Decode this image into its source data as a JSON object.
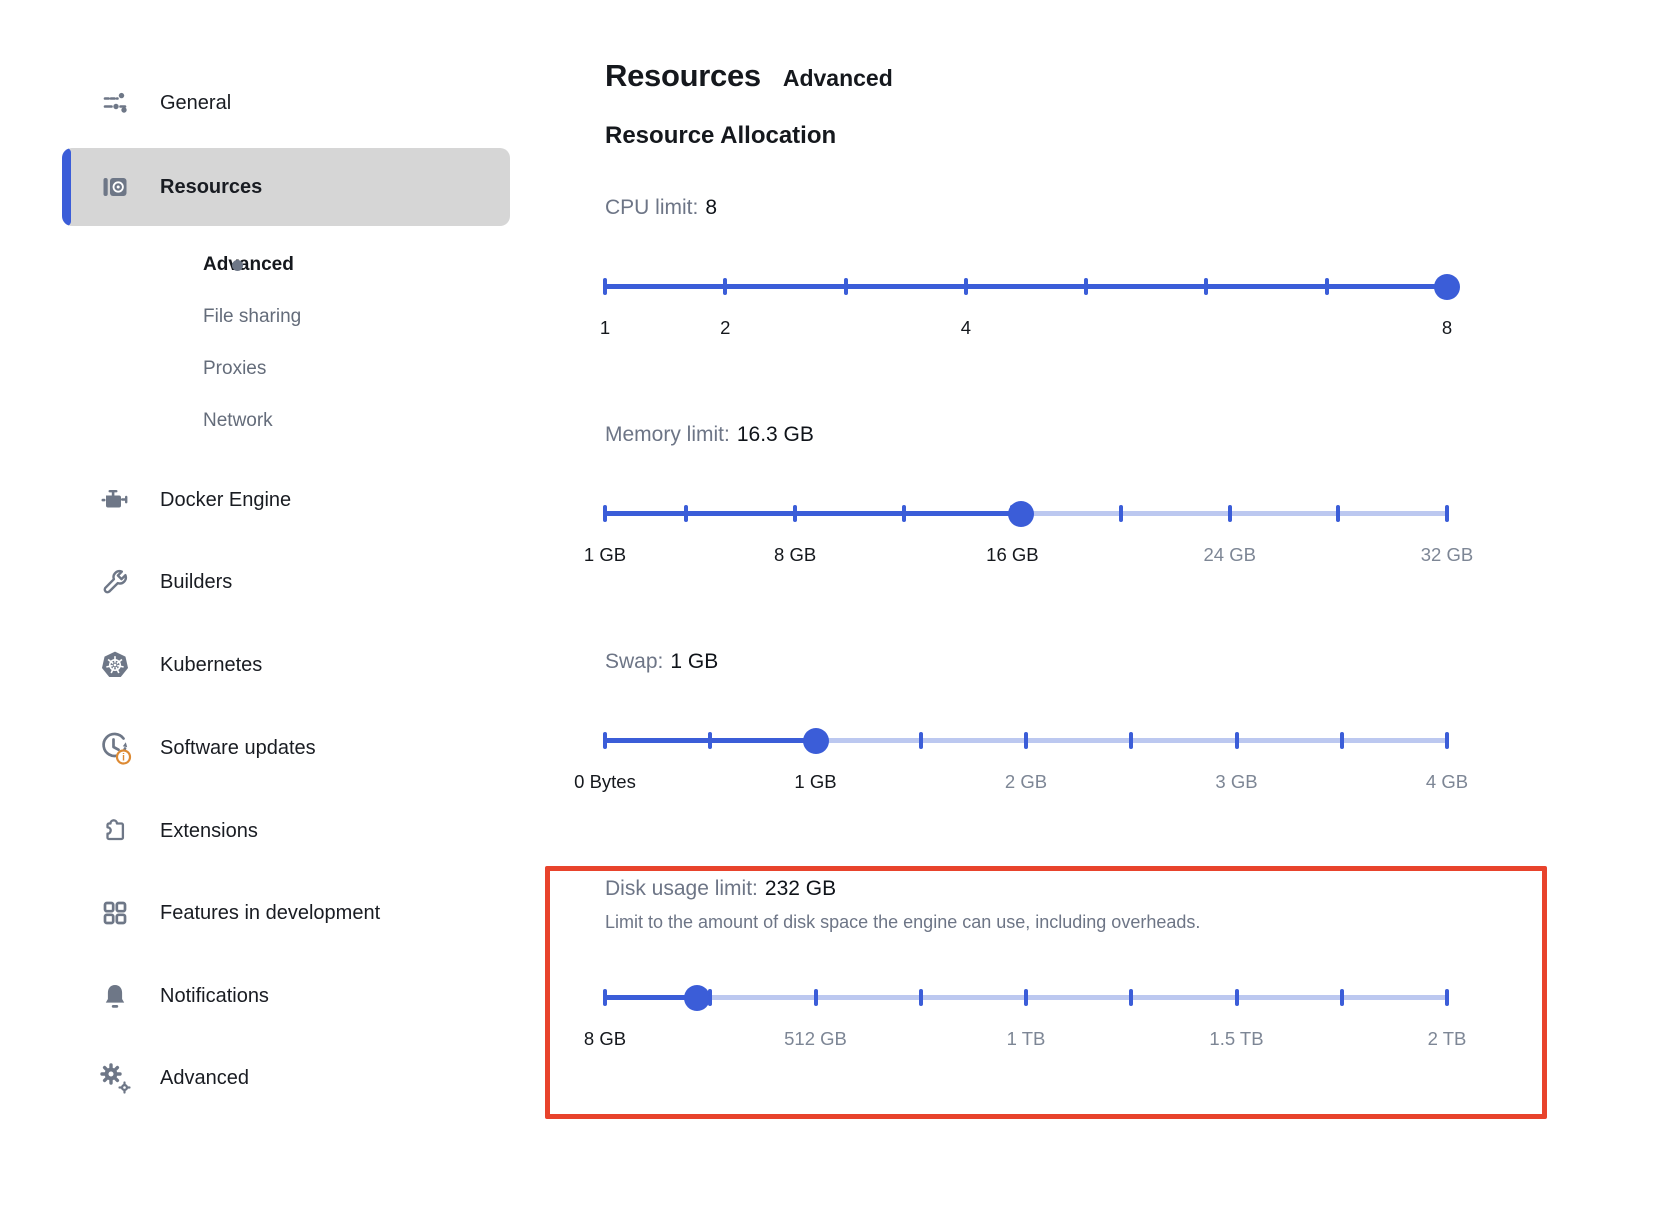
{
  "header": {
    "title": "Resources",
    "subtitle": "Advanced",
    "section_heading": "Resource Allocation"
  },
  "sidebar": {
    "badge_text": "i",
    "items": [
      {
        "label": "General",
        "icon": "tune-icon"
      },
      {
        "label": "Resources",
        "icon": "resources-icon",
        "selected": true
      },
      {
        "label": "Docker Engine",
        "icon": "engine-icon"
      },
      {
        "label": "Builders",
        "icon": "wrench-icon"
      },
      {
        "label": "Kubernetes",
        "icon": "kubernetes-icon"
      },
      {
        "label": "Software updates",
        "icon": "update-clock-icon",
        "badge": "info"
      },
      {
        "label": "Extensions",
        "icon": "puzzle-icon"
      },
      {
        "label": "Features in development",
        "icon": "grid-icon"
      },
      {
        "label": "Notifications",
        "icon": "bell-icon"
      },
      {
        "label": "Advanced",
        "icon": "gear-icon"
      }
    ],
    "resources_children": [
      {
        "label": "Advanced",
        "active": true
      },
      {
        "label": "File sharing",
        "active": false
      },
      {
        "label": "Proxies",
        "active": false
      },
      {
        "label": "Network",
        "active": false
      }
    ]
  },
  "sliders": {
    "cpu": {
      "label": "CPU limit:",
      "value_text": "8",
      "min": 1,
      "max": 8,
      "current": 8,
      "ticks": [
        1,
        2,
        3,
        4,
        5,
        6,
        7,
        8
      ],
      "labels": [
        {
          "v": 1,
          "t": "1"
        },
        {
          "v": 2,
          "t": "2"
        },
        {
          "v": 4,
          "t": "4"
        },
        {
          "v": 8,
          "t": "8"
        }
      ]
    },
    "memory": {
      "label": "Memory limit:",
      "value_text": "16.3 GB",
      "min": 1,
      "max": 32,
      "current": 16.3,
      "ticks": [
        1,
        4,
        8,
        12,
        16,
        20,
        24,
        28,
        32
      ],
      "labels": [
        {
          "v": 1,
          "t": "1 GB"
        },
        {
          "v": 8,
          "t": "8 GB"
        },
        {
          "v": 16,
          "t": "16 GB"
        },
        {
          "v": 24,
          "t": "24 GB"
        },
        {
          "v": 32,
          "t": "32 GB"
        }
      ]
    },
    "swap": {
      "label": "Swap:",
      "value_text": "1 GB",
      "min": 0,
      "max": 4,
      "current": 1,
      "ticks": [
        0,
        0.5,
        1,
        1.5,
        2,
        2.5,
        3,
        3.5,
        4
      ],
      "labels": [
        {
          "v": 0,
          "t": "0 Bytes"
        },
        {
          "v": 1,
          "t": "1 GB"
        },
        {
          "v": 2,
          "t": "2 GB"
        },
        {
          "v": 3,
          "t": "3 GB"
        },
        {
          "v": 4,
          "t": "4 GB"
        }
      ]
    },
    "disk": {
      "label": "Disk usage limit:",
      "value_text": "232 GB",
      "description": "Limit to the amount of disk space the engine can use, including overheads.",
      "min": 8,
      "max": 2048,
      "current": 232,
      "ticks": [
        8,
        263,
        518,
        773,
        1028,
        1283,
        1538,
        1793,
        2048
      ],
      "labels": [
        {
          "v": 8,
          "t": "8 GB"
        },
        {
          "v": 518,
          "t": "512 GB"
        },
        {
          "v": 1028,
          "t": "1 TB"
        },
        {
          "v": 1538,
          "t": "1.5 TB"
        },
        {
          "v": 2048,
          "t": "2 TB"
        }
      ]
    }
  },
  "colors": {
    "accent_blue": "#3b5dd8",
    "track_light": "#bcc8f0",
    "selected_bg": "#d6d6d6",
    "highlight_red": "#e8432c",
    "badge_orange": "#dd8a33",
    "icon_gray": "#6e7787"
  }
}
